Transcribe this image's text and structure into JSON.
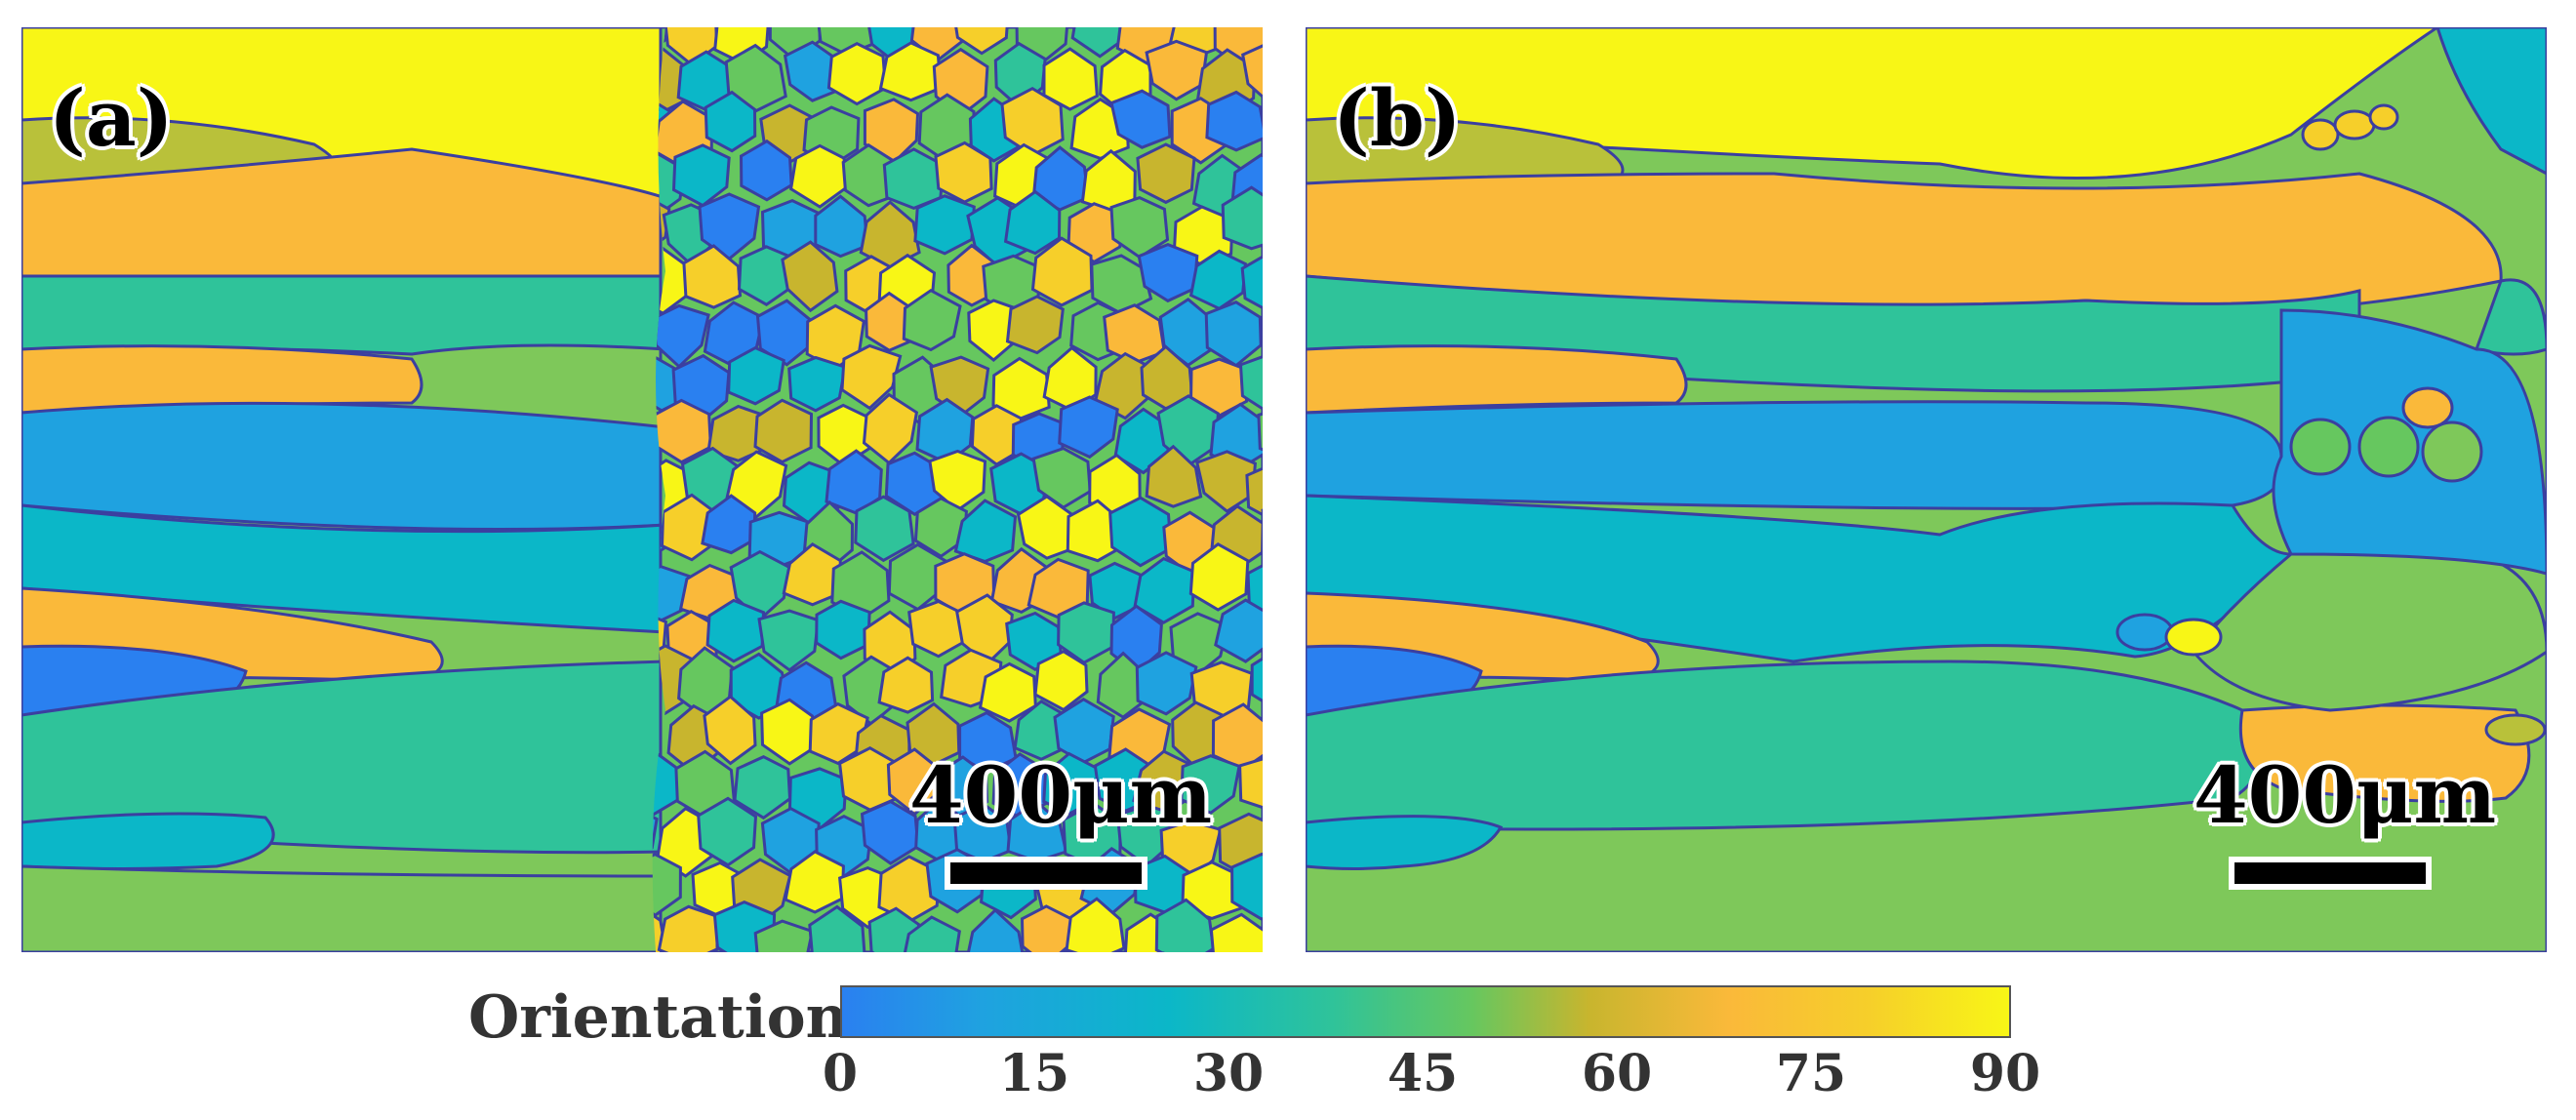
{
  "panels": [
    {
      "label": "(a)",
      "scale_bar": "400μm"
    },
    {
      "label": "(b)",
      "scale_bar": "400μm"
    }
  ],
  "colorbar": {
    "title": "Orientation",
    "ticks": [
      "0",
      "15",
      "30",
      "45",
      "60",
      "75",
      "90"
    ],
    "range": [
      0,
      90
    ]
  },
  "colors": {
    "c0": "#2a80f0",
    "c15": "#1fa2e0",
    "c30": "#0bb7c8",
    "c40": "#2fc39a",
    "c50": "#66c75f",
    "c60": "#c8b52e",
    "c75": "#fab93a",
    "c90": "#f8f616",
    "boundary": "#3b3fa0"
  }
}
